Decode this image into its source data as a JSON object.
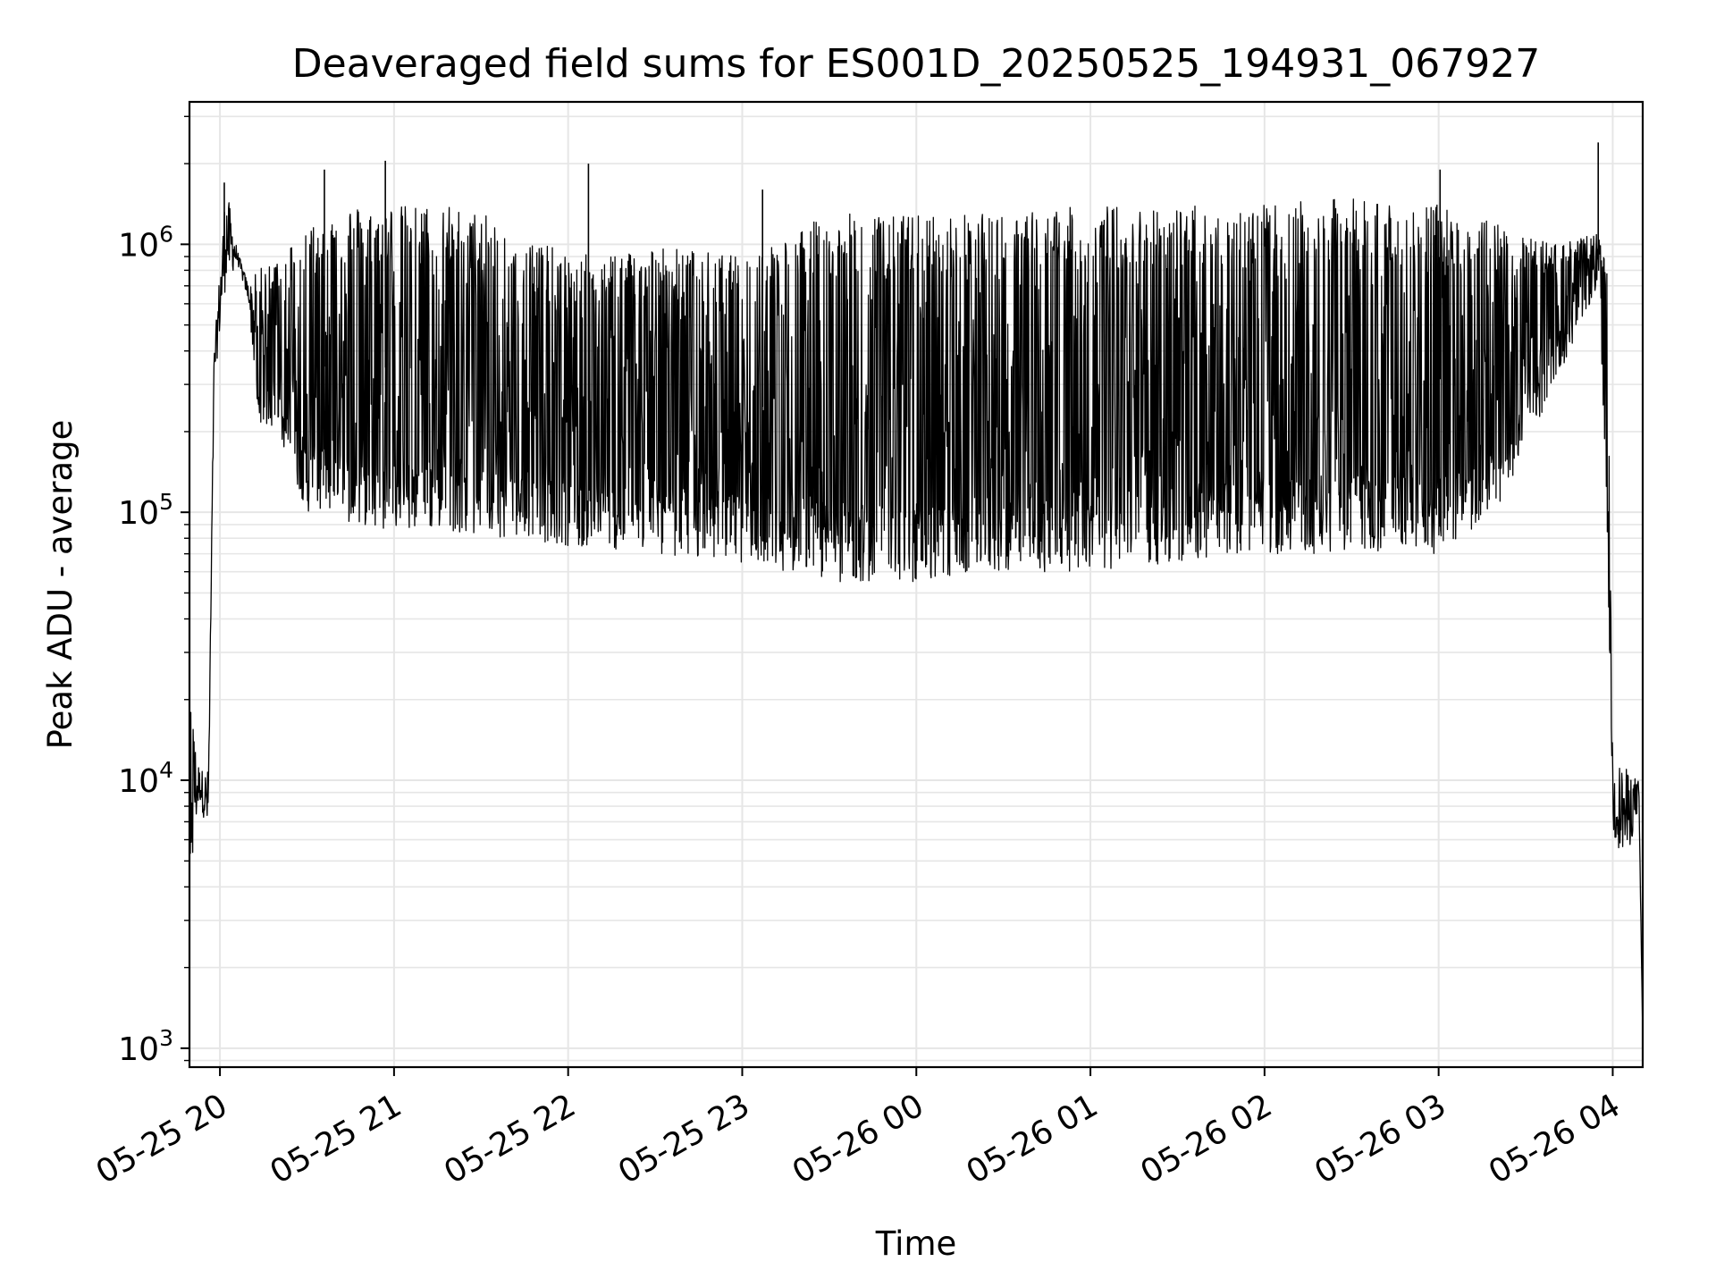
{
  "chart_data": {
    "type": "line",
    "title": "Deaveraged field sums for ES001D_20250525_194931_067927",
    "xlabel": "Time",
    "ylabel": "Peak ADU - average",
    "yscale": "log",
    "ylim": [
      850,
      3400000
    ],
    "xlim": [
      "2025-05-25 19:49:30",
      "2025-05-26 04:10:20"
    ],
    "grid": true,
    "line_color": "#000000",
    "grid_color": "#e6e6e6",
    "x_ticks": [
      {
        "value": "2025-05-25 20:00",
        "label": "05-25 20"
      },
      {
        "value": "2025-05-25 21:00",
        "label": "05-25 21"
      },
      {
        "value": "2025-05-25 22:00",
        "label": "05-25 22"
      },
      {
        "value": "2025-05-25 23:00",
        "label": "05-25 23"
      },
      {
        "value": "2025-05-26 00:00",
        "label": "05-26 00"
      },
      {
        "value": "2025-05-26 01:00",
        "label": "05-26 01"
      },
      {
        "value": "2025-05-26 02:00",
        "label": "05-26 02"
      },
      {
        "value": "2025-05-26 03:00",
        "label": "05-26 03"
      },
      {
        "value": "2025-05-26 04:00",
        "label": "05-26 04"
      }
    ],
    "y_ticks": [
      {
        "value": 1000,
        "base": "10",
        "exp": "3"
      },
      {
        "value": 10000,
        "base": "10",
        "exp": "4"
      },
      {
        "value": 100000,
        "base": "10",
        "exp": "5"
      },
      {
        "value": 1000000,
        "base": "10",
        "exp": "6"
      }
    ],
    "series": [
      {
        "envelope": [
          {
            "x": "2025-05-25 19:49:30",
            "low": 4000,
            "high": 20000
          },
          {
            "x": "2025-05-25 19:53:00",
            "low": 8500,
            "high": 11000
          },
          {
            "x": "2025-05-25 19:56:00",
            "low": 6000,
            "high": 11000
          },
          {
            "x": "2025-05-25 19:58:00",
            "low": 300000,
            "high": 400000
          },
          {
            "x": "2025-05-25 20:02:00",
            "low": 700000,
            "high": 1700000
          },
          {
            "x": "2025-05-25 20:06:00",
            "low": 850000,
            "high": 950000
          },
          {
            "x": "2025-05-25 20:10:00",
            "low": 600000,
            "high": 700000
          },
          {
            "x": "2025-05-25 20:13:00",
            "low": 220000,
            "high": 800000
          },
          {
            "x": "2025-05-25 20:20:00",
            "low": 200000,
            "high": 900000
          },
          {
            "x": "2025-05-25 20:30:00",
            "low": 100000,
            "high": 1200000
          },
          {
            "x": "2025-05-25 20:45:00",
            "low": 90000,
            "high": 1400000
          },
          {
            "x": "2025-05-25 21:00:00",
            "low": 85000,
            "high": 1400000
          },
          {
            "x": "2025-05-25 21:20:00",
            "low": 85000,
            "high": 1400000
          },
          {
            "x": "2025-05-25 21:40:00",
            "low": 80000,
            "high": 1200000
          },
          {
            "x": "2025-05-25 22:00:00",
            "low": 75000,
            "high": 900000
          },
          {
            "x": "2025-05-25 22:30:00",
            "low": 70000,
            "high": 1000000
          },
          {
            "x": "2025-05-25 23:00:00",
            "low": 65000,
            "high": 900000
          },
          {
            "x": "2025-05-25 23:30:00",
            "low": 55000,
            "high": 1300000
          },
          {
            "x": "2025-05-26 00:00:00",
            "low": 55000,
            "high": 1300000
          },
          {
            "x": "2025-05-26 00:30:00",
            "low": 60000,
            "high": 1300000
          },
          {
            "x": "2025-05-26 01:00:00",
            "low": 60000,
            "high": 1400000
          },
          {
            "x": "2025-05-26 01:30:00",
            "low": 65000,
            "high": 1400000
          },
          {
            "x": "2025-05-26 02:00:00",
            "low": 70000,
            "high": 1400000
          },
          {
            "x": "2025-05-26 02:30:00",
            "low": 70000,
            "high": 1500000
          },
          {
            "x": "2025-05-26 03:00:00",
            "low": 70000,
            "high": 1400000
          },
          {
            "x": "2025-05-26 03:20:00",
            "low": 100000,
            "high": 1200000
          },
          {
            "x": "2025-05-26 03:40:00",
            "low": 300000,
            "high": 1000000
          },
          {
            "x": "2025-05-26 03:55:00",
            "low": 700000,
            "high": 1100000
          },
          {
            "x": "2025-05-26 03:58:00",
            "low": 100000,
            "high": 800000
          },
          {
            "x": "2025-05-26 04:00:00",
            "low": 6000,
            "high": 12000
          },
          {
            "x": "2025-05-26 04:05:00",
            "low": 5000,
            "high": 11000
          },
          {
            "x": "2025-05-26 04:09:00",
            "low": 8000,
            "high": 10000
          },
          {
            "x": "2025-05-26 04:10:20",
            "low": 1100,
            "high": 1100
          }
        ],
        "spikes": [
          {
            "x": "2025-05-25 20:01:30",
            "y": 1700000
          },
          {
            "x": "2025-05-25 20:36:00",
            "y": 1900000
          },
          {
            "x": "2025-05-25 20:57:00",
            "y": 2050000
          },
          {
            "x": "2025-05-25 22:07:00",
            "y": 2000000
          },
          {
            "x": "2025-05-25 23:07:00",
            "y": 1600000
          },
          {
            "x": "2025-05-26 03:00:30",
            "y": 1900000
          },
          {
            "x": "2025-05-26 03:55:00",
            "y": 2400000
          }
        ]
      }
    ]
  }
}
